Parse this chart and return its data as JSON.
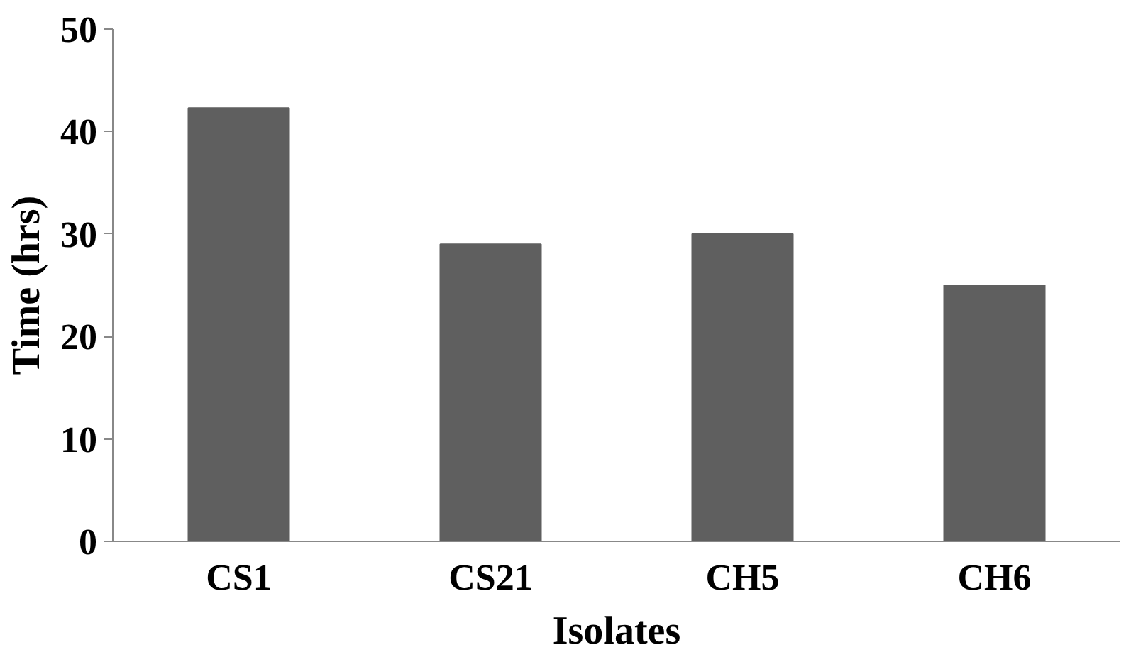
{
  "chart_data": {
    "type": "bar",
    "xlabel": "Isolates",
    "ylabel": "Time (hrs)",
    "categories": [
      "CS1",
      "CS21",
      "CH5",
      "CH6"
    ],
    "values": [
      42.3,
      29,
      30,
      25
    ],
    "color": "#5f5f5f",
    "ylim": [
      0,
      50
    ],
    "yticks": [
      0,
      10,
      20,
      30,
      40,
      50
    ],
    "grid": false
  }
}
